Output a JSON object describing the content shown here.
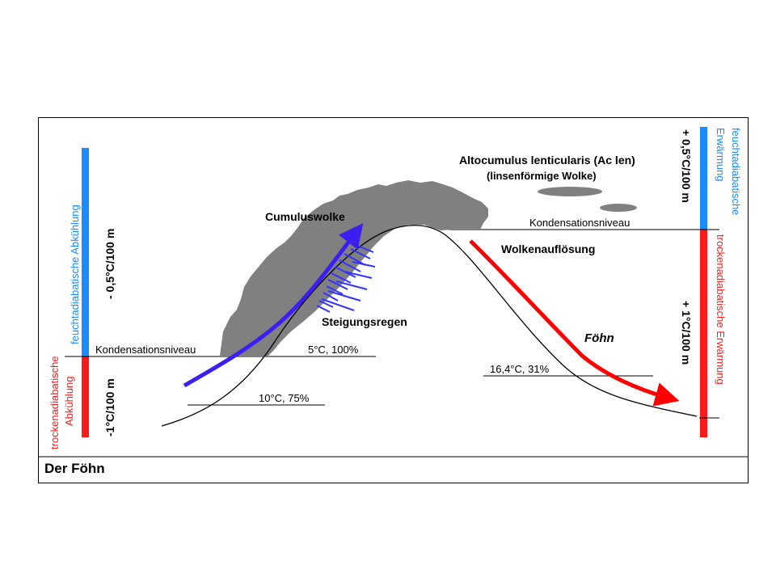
{
  "caption": "Der Föhn",
  "labels": {
    "cumulus": "Cumuluswolke",
    "altocumulus": "Altocumulus lenticularis (Ac len)",
    "altocumulus_sub": "(linsenförmige Wolke)",
    "cond_left": "Kondensationsniveau",
    "cond_right": "Kondensationsniveau",
    "dissolution": "Wolkenauflösung",
    "rain": "Steigungsregen",
    "foehn": "Föhn",
    "t5": "5°C, 100%",
    "t10": "10°C, 75%",
    "t16": "16,4°C, 31%"
  },
  "left_scale": {
    "upper_label_line1": "feuchtadiabatische Abkühlung",
    "upper_rate": "- 0,5°C/100 m",
    "lower_label_line1": "trockenadiabatische",
    "lower_label_line2": "Abkühlung",
    "lower_rate": "-1°C/100 m"
  },
  "right_scale": {
    "upper_label_line1": "feuchtadiabatische",
    "upper_label_line2": "Erwärmung",
    "upper_rate": "+ 0,5°C/100 m",
    "lower_label_line1": "trockenadiabatische Erwärmung",
    "lower_rate": "+ 1°C/100 m"
  },
  "colors": {
    "blue_bar": "#1a8cff",
    "red_bar": "#ff1a1a",
    "ascent_arrow": "#3b1ff0",
    "descent_arrow": "#ff0000",
    "cloud": "#808080",
    "rain": "#3333ff"
  }
}
